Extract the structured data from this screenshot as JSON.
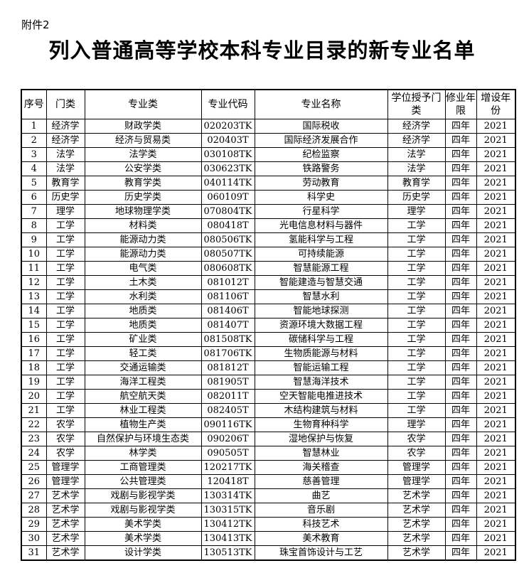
{
  "attachment_label": "附件2",
  "title": "列入普通高等学校本科专业目录的新专业名单",
  "headers": [
    "序号",
    "门类",
    "专业类",
    "专业代码",
    "专业名称",
    "学位授予门类",
    "修业年限",
    "增设年份"
  ],
  "rows": [
    [
      "1",
      "经济学",
      "财政学类",
      "020203TK",
      "国际税收",
      "经济学",
      "四年",
      "2021"
    ],
    [
      "2",
      "经济学",
      "经济与贸易类",
      "020403T",
      "国际经济发展合作",
      "经济学",
      "四年",
      "2021"
    ],
    [
      "3",
      "法学",
      "法学类",
      "030108TK",
      "纪检监察",
      "法学",
      "四年",
      "2021"
    ],
    [
      "4",
      "法学",
      "公安学类",
      "030623TK",
      "铁路警务",
      "法学",
      "四年",
      "2021"
    ],
    [
      "5",
      "教育学",
      "教育学类",
      "040114TK",
      "劳动教育",
      "教育学",
      "四年",
      "2021"
    ],
    [
      "6",
      "历史学",
      "历史学类",
      "060109T",
      "科学史",
      "历史学",
      "四年",
      "2021"
    ],
    [
      "7",
      "理学",
      "地球物理学类",
      "070804TK",
      "行星科学",
      "理学",
      "四年",
      "2021"
    ],
    [
      "8",
      "工学",
      "材料类",
      "080418T",
      "光电信息材料与器件",
      "工学",
      "四年",
      "2021"
    ],
    [
      "9",
      "工学",
      "能源动力类",
      "080506TK",
      "氢能科学与工程",
      "工学",
      "四年",
      "2021"
    ],
    [
      "10",
      "工学",
      "能源动力类",
      "080507TK",
      "可持续能源",
      "工学",
      "四年",
      "2021"
    ],
    [
      "11",
      "工学",
      "电气类",
      "080608TK",
      "智慧能源工程",
      "工学",
      "四年",
      "2021"
    ],
    [
      "12",
      "工学",
      "土木类",
      "081012T",
      "智能建造与智慧交通",
      "工学",
      "四年",
      "2021"
    ],
    [
      "13",
      "工学",
      "水利类",
      "081106T",
      "智慧水利",
      "工学",
      "四年",
      "2021"
    ],
    [
      "14",
      "工学",
      "地质类",
      "081406T",
      "智能地球探测",
      "工学",
      "四年",
      "2021"
    ],
    [
      "15",
      "工学",
      "地质类",
      "081407T",
      "资源环境大数据工程",
      "工学",
      "四年",
      "2021"
    ],
    [
      "16",
      "工学",
      "矿业类",
      "081508TK",
      "碳储科学与工程",
      "工学",
      "四年",
      "2021"
    ],
    [
      "17",
      "工学",
      "轻工类",
      "081706TK",
      "生物质能源与材料",
      "工学",
      "四年",
      "2021"
    ],
    [
      "18",
      "工学",
      "交通运输类",
      "081812T",
      "智能运输工程",
      "工学",
      "四年",
      "2021"
    ],
    [
      "19",
      "工学",
      "海洋工程类",
      "081905T",
      "智慧海洋技术",
      "工学",
      "四年",
      "2021"
    ],
    [
      "20",
      "工学",
      "航空航天类",
      "082011T",
      "空天智能电推进技术",
      "工学",
      "四年",
      "2021"
    ],
    [
      "21",
      "工学",
      "林业工程类",
      "082405T",
      "木结构建筑与材料",
      "工学",
      "四年",
      "2021"
    ],
    [
      "22",
      "农学",
      "植物生产类",
      "090116TK",
      "生物育种科学",
      "理学",
      "四年",
      "2021"
    ],
    [
      "23",
      "农学",
      "自然保护与环境生态类",
      "090206T",
      "湿地保护与恢复",
      "农学",
      "四年",
      "2021"
    ],
    [
      "24",
      "农学",
      "林学类",
      "090505T",
      "智慧林业",
      "农学",
      "四年",
      "2021"
    ],
    [
      "25",
      "管理学",
      "工商管理类",
      "120217TK",
      "海关稽查",
      "管理学",
      "四年",
      "2021"
    ],
    [
      "26",
      "管理学",
      "公共管理类",
      "120418T",
      "慈善管理",
      "管理学",
      "四年",
      "2021"
    ],
    [
      "27",
      "艺术学",
      "戏剧与影视学类",
      "130314TK",
      "曲艺",
      "艺术学",
      "四年",
      "2021"
    ],
    [
      "28",
      "艺术学",
      "戏剧与影视学类",
      "130315TK",
      "音乐剧",
      "艺术学",
      "四年",
      "2021"
    ],
    [
      "29",
      "艺术学",
      "美术学类",
      "130412TK",
      "科技艺术",
      "艺术学",
      "四年",
      "2021"
    ],
    [
      "30",
      "艺术学",
      "美术学类",
      "130413TK",
      "美术教育",
      "艺术学",
      "四年",
      "2021"
    ],
    [
      "31",
      "艺术学",
      "设计学类",
      "130513TK",
      "珠宝首饰设计与工艺",
      "艺术学",
      "四年",
      "2021"
    ]
  ]
}
